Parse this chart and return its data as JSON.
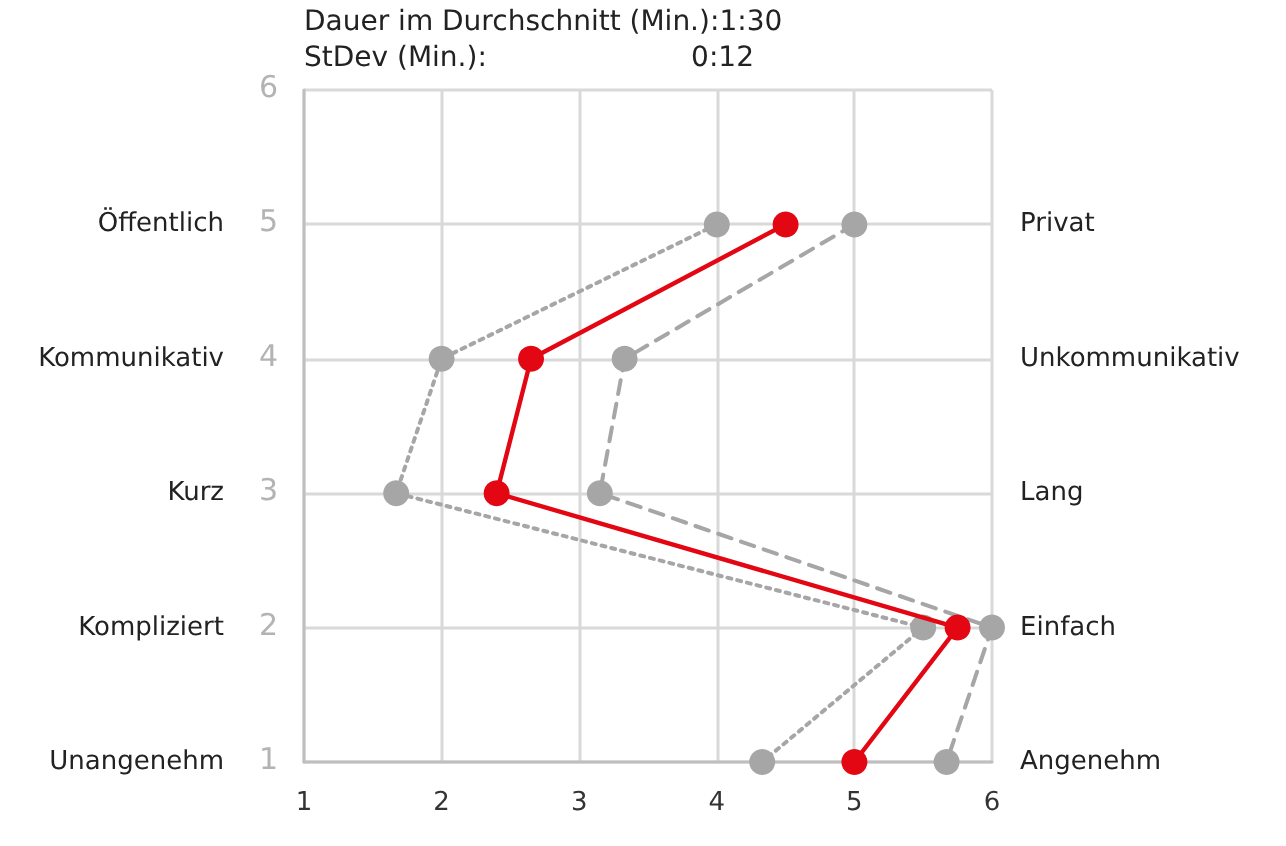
{
  "chart_data": {
    "type": "line",
    "orientation": "horizontal",
    "annotations": [
      "Dauer im Durchschnitt (Min.):1:30",
      "StDev (Min.):",
      "0:12",
      "6",
      "5",
      "4",
      "3",
      "2",
      "1"
    ],
    "categories": [
      null,
      "Öffentlich",
      "Kommunikativ",
      "Kurz",
      "Kompliziert",
      "Unangenehm"
    ],
    "y2_categories": [
      null,
      "Privat",
      "Unkommunikativ",
      "Lang",
      "Einfach",
      "Angenehm"
    ],
    "series": [
      {
        "color": "#a6a6a6",
        "line_style": "dotted",
        "values": [
          null,
          4,
          2,
          1.67,
          5.5,
          4.33
        ]
      },
      {
        "color": "#a6a6a6",
        "line_style": "dashed",
        "values": [
          null,
          5,
          3.33,
          3.15,
          6,
          5.67
        ]
      },
      {
        "color": "#e30613",
        "line_style": "solid",
        "values": [
          null,
          4.5,
          2.65,
          2.4,
          5.75,
          5
        ]
      }
    ],
    "xlim": [
      1,
      6
    ],
    "xticks": [
      1,
      2,
      3,
      4,
      5,
      6
    ],
    "grid": true,
    "marker": "circle"
  }
}
